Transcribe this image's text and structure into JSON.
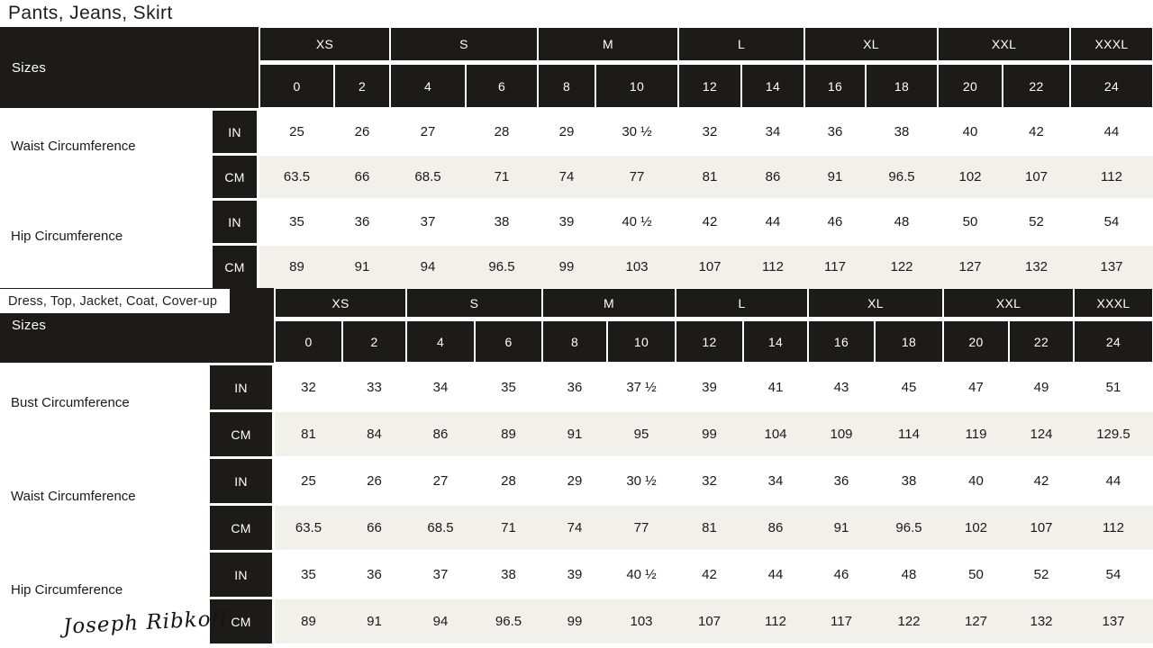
{
  "colors": {
    "header_bg": "#1d1b1a",
    "header_text": "#ffffff",
    "alt_row_bg": "#f1f0ea",
    "text": "#1a1a1a"
  },
  "brand": {
    "logo_text": "Joseph Ribkoff"
  },
  "units": {
    "inches": "IN",
    "centimeters": "CM"
  },
  "chart_data": [
    {
      "type": "table",
      "title": "Pants, Jeans, Skirt",
      "corner_label": "Sizes",
      "size_groups": [
        {
          "label": "XS",
          "span": 2
        },
        {
          "label": "S",
          "span": 2
        },
        {
          "label": "M",
          "span": 2
        },
        {
          "label": "L",
          "span": 2
        },
        {
          "label": "XL",
          "span": 2
        },
        {
          "label": "XXL",
          "span": 2
        },
        {
          "label": "XXXL",
          "span": 1
        }
      ],
      "size_numbers": [
        "0",
        "2",
        "4",
        "6",
        "8",
        "10",
        "12",
        "14",
        "16",
        "18",
        "20",
        "22",
        "24"
      ],
      "measurements": [
        {
          "label": "Waist Circumference",
          "in": [
            "25",
            "26",
            "27",
            "28",
            "29",
            "30 ½",
            "32",
            "34",
            "36",
            "38",
            "40",
            "42",
            "44"
          ],
          "cm": [
            "63.5",
            "66",
            "68.5",
            "71",
            "74",
            "77",
            "81",
            "86",
            "91",
            "96.5",
            "102",
            "107",
            "112"
          ]
        },
        {
          "label": "Hip Circumference",
          "in": [
            "35",
            "36",
            "37",
            "38",
            "39",
            "40 ½",
            "42",
            "44",
            "46",
            "48",
            "50",
            "52",
            "54"
          ],
          "cm": [
            "89",
            "91",
            "94",
            "96.5",
            "99",
            "103",
            "107",
            "112",
            "117",
            "122",
            "127",
            "132",
            "137"
          ]
        }
      ]
    },
    {
      "type": "table",
      "title": "Dress, Top, Jacket, Coat, Cover-up",
      "corner_label": "Sizes",
      "size_groups": [
        {
          "label": "XS",
          "span": 2
        },
        {
          "label": "S",
          "span": 2
        },
        {
          "label": "M",
          "span": 2
        },
        {
          "label": "L",
          "span": 2
        },
        {
          "label": "XL",
          "span": 2
        },
        {
          "label": "XXL",
          "span": 2
        },
        {
          "label": "XXXL",
          "span": 1
        }
      ],
      "size_numbers": [
        "0",
        "2",
        "4",
        "6",
        "8",
        "10",
        "12",
        "14",
        "16",
        "18",
        "20",
        "22",
        "24"
      ],
      "measurements": [
        {
          "label": "Bust Circumference",
          "in": [
            "32",
            "33",
            "34",
            "35",
            "36",
            "37 ½",
            "39",
            "41",
            "43",
            "45",
            "47",
            "49",
            "51"
          ],
          "cm": [
            "81",
            "84",
            "86",
            "89",
            "91",
            "95",
            "99",
            "104",
            "109",
            "114",
            "119",
            "124",
            "129.5"
          ]
        },
        {
          "label": "Waist Circumference",
          "in": [
            "25",
            "26",
            "27",
            "28",
            "29",
            "30 ½",
            "32",
            "34",
            "36",
            "38",
            "40",
            "42",
            "44"
          ],
          "cm": [
            "63.5",
            "66",
            "68.5",
            "71",
            "74",
            "77",
            "81",
            "86",
            "91",
            "96.5",
            "102",
            "107",
            "112"
          ]
        },
        {
          "label": "Hip Circumference",
          "in": [
            "35",
            "36",
            "37",
            "38",
            "39",
            "40 ½",
            "42",
            "44",
            "46",
            "48",
            "50",
            "52",
            "54"
          ],
          "cm": [
            "89",
            "91",
            "94",
            "96.5",
            "99",
            "103",
            "107",
            "112",
            "117",
            "122",
            "127",
            "132",
            "137"
          ]
        }
      ]
    }
  ]
}
